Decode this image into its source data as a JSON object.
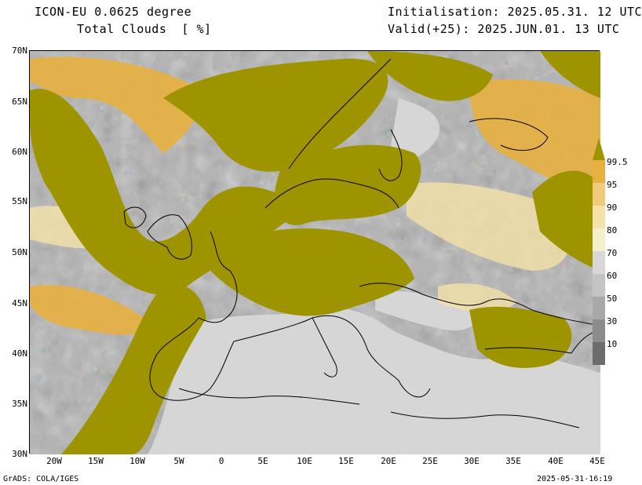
{
  "header": {
    "model": "ICON-EU 0.0625 degree",
    "parameter": "Total Clouds  [ %]",
    "initialisation": "Initialisation: 2025.05.31. 12 UTC",
    "valid": "Valid(+25): 2025.JUN.01. 13 UTC"
  },
  "map": {
    "lat_labels": [
      "70N",
      "65N",
      "60N",
      "55N",
      "50N",
      "45N",
      "40N",
      "35N",
      "30N"
    ],
    "lon_labels": [
      "20W",
      "15W",
      "10W",
      "5W",
      "0",
      "5E",
      "10E",
      "15E",
      "20E",
      "25E",
      "30E",
      "35E",
      "40E",
      "45E"
    ],
    "colors": {
      "full_cloud": "#9e9400",
      "high_95": "#e8b040",
      "mid_90": "#f0cc7a",
      "mid_80": "#f4e2a8",
      "mid_70": "#f4f0cc",
      "grey_60": "#c4c4c4",
      "grey_50": "#a8a8a8",
      "grey_30": "#8c8c8c",
      "grey_10": "#6c6c6c",
      "clear": "#d8d8d8"
    }
  },
  "colorbar": {
    "labels": [
      "99.5",
      "95",
      "90",
      "80",
      "70",
      "60",
      "50",
      "30",
      "10"
    ],
    "colors": [
      "#9e9400",
      "#e8b040",
      "#f0cc7a",
      "#f4e2a8",
      "#f4f0cc",
      "#d8d8d8",
      "#c4c4c4",
      "#a8a8a8",
      "#8c8c8c",
      "#6c6c6c"
    ]
  },
  "footer": {
    "credit": "GrADS: COLA/IGES",
    "timestamp": "2025-05-31-16:19"
  }
}
